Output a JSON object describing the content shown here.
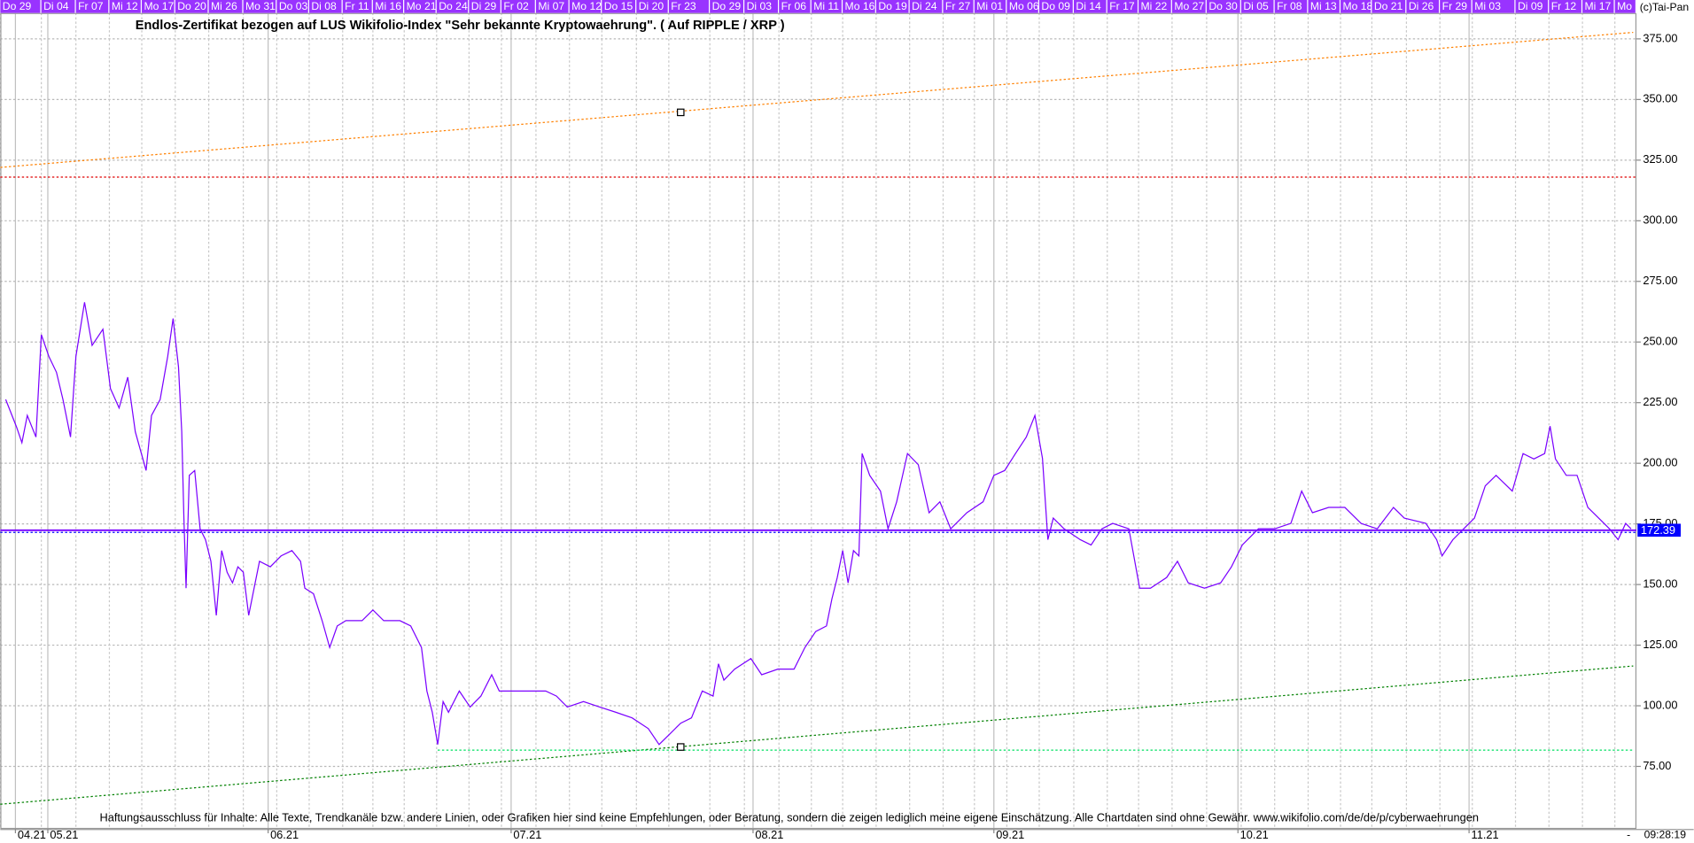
{
  "chart_data": {
    "type": "line",
    "title": "Endlos-Zertifikat bezogen auf LUS Wikifolio-Index \"Sehr bekannte Kryptowaehrung\". ( Auf RIPPLE / XRP )",
    "copyright": "(c)Tai-Pan",
    "disclaimer": "Haftungsausschluss für Inhalte: Alle Texte, Trendkanäle bzw. andere Linien, oder Grafiken hier sind keine Empfehlungen, oder Beratung, sondern die zeigen lediglich meine eigene Einschätzung. Alle Chartdaten sind ohne Gewähr.  www.wikifolio.com/de/de/p/cyberwaehrungen",
    "time": "09:28:19",
    "x_axis_marker": "-",
    "color": "#7a00ff",
    "x": [
      -3.9,
      -2.9,
      -2.4,
      -1.9,
      -1.1,
      -0.6,
      0.1,
      0.8,
      1.4,
      2.1,
      2.6,
      3.4,
      4.1,
      5.1,
      5.8,
      6.6,
      7.4,
      8.1,
      9.1,
      9.6,
      10.4,
      11.1,
      11.6,
      12.1,
      12.4,
      12.6,
      12.8,
      13.1,
      13.6,
      14.1,
      14.6,
      15.1,
      15.6,
      16.1,
      16.6,
      17.1,
      17.6,
      18.1,
      18.6,
      19.1,
      19.6,
      20.6,
      21.6,
      22.6,
      23.4,
      23.8,
      24.6,
      25.4,
      26.1,
      26.8,
      27.6,
      29.1,
      30.1,
      31.1,
      32.6,
      33.6,
      34.6,
      35.1,
      35.6,
      36.1,
      36.6,
      37.1,
      38.1,
      39.1,
      40.1,
      41.1,
      41.8,
      43.1,
      44.6,
      46.1,
      47.1,
      48.1,
      49.6,
      51.1,
      52.6,
      54.1,
      55.6,
      56.6,
      57.6,
      58.6,
      59.6,
      60.6,
      61.6,
      62.1,
      62.6,
      63.6,
      65.1,
      66.1,
      67.6,
      69.1,
      70.1,
      71.1,
      72.1,
      72.6,
      73.1,
      73.6,
      74.1,
      74.6,
      75.1,
      75.4,
      76.1,
      77.1,
      77.8,
      78.6,
      79.6,
      80.6,
      81.6,
      82.6,
      83.6,
      85.1,
      86.6,
      87.6,
      88.6,
      89.6,
      90.6,
      91.4,
      92.1,
      92.6,
      93.1,
      94.1,
      95.6,
      96.6,
      97.6,
      98.6,
      100.1,
      101.1,
      102.1,
      103.6,
      104.6,
      105.6,
      107.1,
      108.6,
      109.6,
      110.6,
      112.1,
      113.6,
      115.1,
      116.1,
      117.1,
      118.6,
      120.1,
      121.6,
      123.1,
      124.6,
      125.6,
      127.6,
      128.6,
      129.1,
      130.1,
      131.1,
      132.1,
      133.1,
      134.1,
      135.6,
      136.6,
      137.6,
      138.6,
      139.1,
      139.6,
      140.6,
      141.6,
      142.6,
      143.6,
      144.6,
      145.4,
      146.1,
      146.6
    ],
    "values": [
      226.3,
      215,
      208.5,
      219.7,
      210.8,
      253,
      244,
      237.5,
      226.3,
      210.8,
      244,
      266.4,
      248.6,
      255.3,
      230.8,
      222.8,
      235.5,
      213,
      197,
      219.7,
      226.3,
      244,
      259.7,
      239.7,
      213,
      177.4,
      148.5,
      195,
      197,
      173,
      168.5,
      159.6,
      137.3,
      164,
      155.1,
      150.7,
      157.3,
      155.1,
      137.3,
      148.5,
      159.6,
      157.3,
      161.8,
      164,
      159.6,
      148.5,
      146.2,
      135.1,
      124,
      132.9,
      135.1,
      135.1,
      139.5,
      135.1,
      135.1,
      132.9,
      124,
      106.1,
      97.3,
      84,
      101.7,
      97.3,
      106.1,
      99.5,
      104,
      112.8,
      106.1,
      106.1,
      106.1,
      106.1,
      104,
      99.5,
      101.7,
      99.5,
      97.3,
      95,
      90.6,
      84,
      88.4,
      92.8,
      95,
      106.1,
      104,
      117.3,
      110.6,
      115.1,
      119.5,
      112.8,
      115.1,
      115.1,
      124,
      130.6,
      132.9,
      144,
      152.9,
      164,
      150.7,
      164,
      161.8,
      204,
      195,
      188.5,
      173,
      184.1,
      204,
      199.4,
      179.6,
      184.1,
      173,
      179.6,
      184.1,
      195,
      197,
      204,
      210.8,
      219.7,
      202,
      168.5,
      177.4,
      173,
      168.5,
      166.3,
      173,
      175.2,
      173,
      148.5,
      148.5,
      152.9,
      159.6,
      150.7,
      148.5,
      150.7,
      157.3,
      166.3,
      173,
      173,
      175.2,
      188.5,
      179.6,
      181.8,
      181.8,
      175.2,
      173,
      181.8,
      177.4,
      175.2,
      168.5,
      161.8,
      168.5,
      173,
      177.4,
      190.7,
      195,
      188.5,
      204,
      201.8,
      204,
      215.3,
      201.8,
      195,
      195,
      181.8,
      177.4,
      173,
      168.5,
      175.2,
      173
    ],
    "last_value": 172.39,
    "last_value_color": "#0000ff",
    "reference_lines": [
      {
        "value": 318,
        "color": "#e00000"
      }
    ],
    "trendlines": [
      {
        "x": [
          -4.4,
          146.8
        ],
        "values": [
          322,
          377.7
        ],
        "color": "#ff8000"
      },
      {
        "x": [
          -4.4,
          146.8
        ],
        "values": [
          59.4,
          116.4
        ],
        "color": "#008000"
      },
      {
        "x": [
          36.1,
          146.8
        ],
        "values": [
          81.7,
          81.7
        ],
        "color": "#00e060"
      }
    ],
    "markers": {
      "x": [
        58.6,
        58.6
      ],
      "values": [
        344.7,
        83.0
      ]
    },
    "xlim": [
      -4.4,
      147.1
    ],
    "ylim": [
      49.2,
      384.8
    ],
    "xticks": [
      {
        "value": -3,
        "label": "04.21"
      },
      {
        "value": 0,
        "label": "05.21"
      },
      {
        "value": 20.4,
        "label": "06.21"
      },
      {
        "value": 42.9,
        "label": "07.21"
      },
      {
        "value": 65.3,
        "label": "08.21"
      },
      {
        "value": 87.6,
        "label": "09.21"
      },
      {
        "value": 110.2,
        "label": "10.21"
      },
      {
        "value": 131.6,
        "label": "11.21"
      }
    ],
    "top_xticks": [
      {
        "value": -4.4,
        "label": "Do 29"
      },
      {
        "value": -0.6,
        "label": "Di 04"
      },
      {
        "value": 2.6,
        "label": "Fr 07"
      },
      {
        "value": 5.7,
        "label": "Mi 12"
      },
      {
        "value": 8.7,
        "label": "Mo 17"
      },
      {
        "value": 11.8,
        "label": "Do 20"
      },
      {
        "value": 14.9,
        "label": "Mi 26"
      },
      {
        "value": 18.1,
        "label": "Mo 31"
      },
      {
        "value": 21.2,
        "label": "Do 03"
      },
      {
        "value": 24.2,
        "label": "Di 08"
      },
      {
        "value": 27.3,
        "label": "Fr 11"
      },
      {
        "value": 30.1,
        "label": "Mi 16"
      },
      {
        "value": 33,
        "label": "Mo 21"
      },
      {
        "value": 36,
        "label": "Do 24"
      },
      {
        "value": 39,
        "label": "Di 29"
      },
      {
        "value": 42,
        "label": "Fr 02"
      },
      {
        "value": 45.2,
        "label": "Mi 07"
      },
      {
        "value": 48.3,
        "label": "Mo 12"
      },
      {
        "value": 51.3,
        "label": "Do 15"
      },
      {
        "value": 54.5,
        "label": "Di 20"
      },
      {
        "value": 57.5,
        "label": "Fr 23"
      },
      {
        "value": 61.3,
        "label": "Do 29"
      },
      {
        "value": 64.5,
        "label": "Di 03"
      },
      {
        "value": 67.7,
        "label": "Fr 06"
      },
      {
        "value": 70.7,
        "label": "Mi 11"
      },
      {
        "value": 73.6,
        "label": "Mo 16"
      },
      {
        "value": 76.7,
        "label": "Do 19"
      },
      {
        "value": 79.8,
        "label": "Di 24"
      },
      {
        "value": 82.9,
        "label": "Fr 27"
      },
      {
        "value": 85.8,
        "label": "Mi 01"
      },
      {
        "value": 88.8,
        "label": "Mo 06"
      },
      {
        "value": 91.8,
        "label": "Do 09"
      },
      {
        "value": 95,
        "label": "Di 14"
      },
      {
        "value": 98.1,
        "label": "Fr 17"
      },
      {
        "value": 101,
        "label": "Mi 22"
      },
      {
        "value": 104.1,
        "label": "Mo 27"
      },
      {
        "value": 107.3,
        "label": "Do 30"
      },
      {
        "value": 110.5,
        "label": "Di 05"
      },
      {
        "value": 113.6,
        "label": "Fr 08"
      },
      {
        "value": 116.7,
        "label": "Mi 13"
      },
      {
        "value": 119.7,
        "label": "Mo 18"
      },
      {
        "value": 122.6,
        "label": "Do 21"
      },
      {
        "value": 125.8,
        "label": "Di 26"
      },
      {
        "value": 128.9,
        "label": "Fr 29"
      },
      {
        "value": 131.9,
        "label": "Mi 03"
      },
      {
        "value": 135.9,
        "label": "Di 09"
      },
      {
        "value": 139,
        "label": "Fr 12"
      },
      {
        "value": 142.1,
        "label": "Mi 17"
      },
      {
        "value": 145.1,
        "label": "Mo"
      }
    ],
    "yticks": [
      {
        "value": 75,
        "label": "75.00"
      },
      {
        "value": 100,
        "label": "100.00"
      },
      {
        "value": 125,
        "label": "125.00"
      },
      {
        "value": 150,
        "label": "150.00"
      },
      {
        "value": 175,
        "label": "175.00"
      },
      {
        "value": 200,
        "label": "200.00"
      },
      {
        "value": 225,
        "label": "225.00"
      },
      {
        "value": 250,
        "label": "250.00"
      },
      {
        "value": 275,
        "label": "275.00"
      },
      {
        "value": 300,
        "label": "300.00"
      },
      {
        "value": 325,
        "label": "325.00"
      },
      {
        "value": 350,
        "label": "350.00"
      },
      {
        "value": 375,
        "label": "375.00"
      }
    ],
    "grid": true
  }
}
